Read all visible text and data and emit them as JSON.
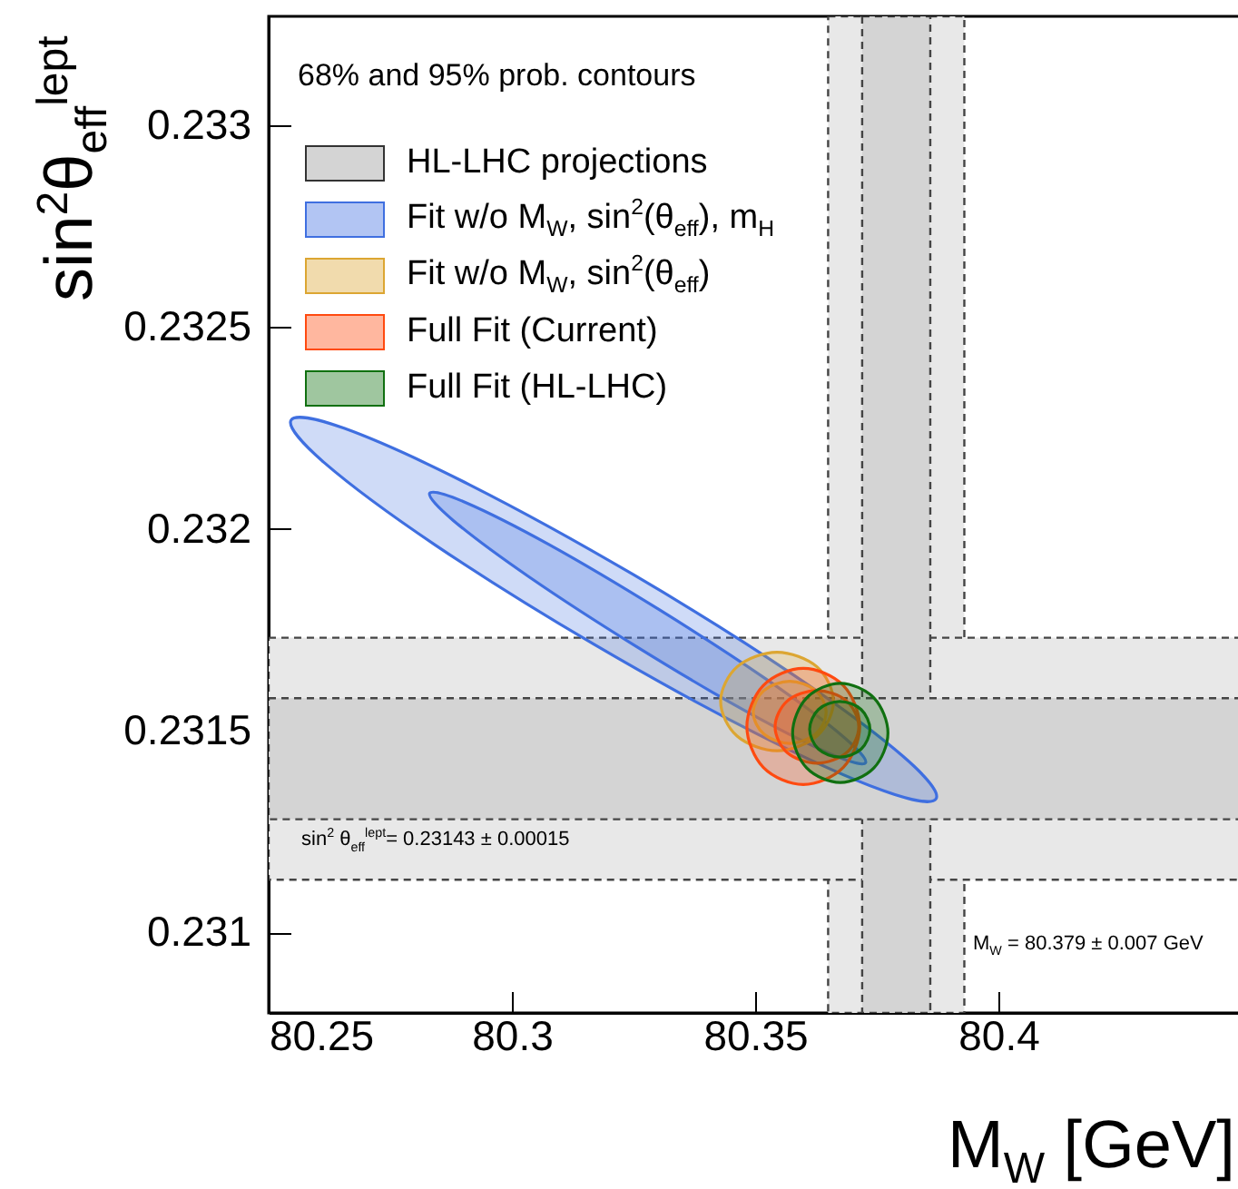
{
  "chart_data": {
    "type": "area",
    "xlabel": "M$_{W}$ [GeV]",
    "ylabel": "sin$^{2}$θ$_{eff}$$^{lept}$",
    "xlim": [
      80.25,
      80.45
    ],
    "xticks": [
      80.25,
      80.3,
      80.35,
      80.4
    ],
    "ylim": [
      0.2308,
      0.23327
    ],
    "yticks": [
      0.231,
      0.2315,
      0.232,
      0.2325,
      0.233
    ],
    "legend": "top left",
    "annotations": [
      "68% and 95% prob. contours",
      "sin$^{2}$ θ$_{eff}$$^{lept}$= 0.23143 ± 0.00015",
      "M$_{W}$ = 80.379 ± 0.007 GeV",
      "HL-LHC projections"
    ],
    "bands": [
      {
        "axis": "x",
        "from": 80.365,
        "to": 80.393,
        "color": "#e8e8e8"
      },
      {
        "axis": "y",
        "from": 0.23113,
        "to": 0.23173,
        "color": "#e8e8e8"
      },
      {
        "axis": "x",
        "from": 80.372,
        "to": 80.386,
        "color": "#d4d4d4"
      },
      {
        "axis": "y",
        "from": 0.23128,
        "to": 0.23158,
        "color": "#d4d4d4"
      }
    ],
    "series": [
      {
        "name": "Fit w/o M$_{W}$, sin$^{2}$(θ$_{eff}$), m$_{H}$",
        "color": "#3f6fe0",
        "x": [
          80.3872,
          80.3804,
          80.3576,
          80.325,
          80.2913,
          80.2655,
          80.2546,
          80.2614,
          80.2842,
          80.3168,
          80.3505,
          80.3763
        ],
        "values": [
          0.231331,
          0.231436,
          0.23164,
          0.231886,
          0.232109,
          0.232249,
          0.232269,
          0.232164,
          0.23196,
          0.231714,
          0.231491,
          0.231351
        ]
      },
      {
        "color": "#3f6fe0",
        "x": [
          80.3727,
          80.3678,
          80.3523,
          80.3302,
          80.3076,
          80.2903,
          80.2831,
          80.288,
          80.3035,
          80.3256,
          80.3482,
          80.3655
        ],
        "values": [
          0.23142,
          0.231488,
          0.231627,
          0.2318,
          0.231961,
          0.232066,
          0.232088,
          0.23202,
          0.231881,
          0.231708,
          0.231547,
          0.231442
        ]
      },
      {
        "name": "Fit w/o M$_{W}$, sin$^{2}$(θ$_{eff}$)",
        "color": "#dca632",
        "x": [
          80.3661,
          80.3627,
          80.3545,
          80.3463,
          80.3429,
          80.3463,
          80.3545,
          80.3627
        ],
        "values": [
          0.231572,
          0.231486,
          0.23145,
          0.231486,
          0.231572,
          0.231658,
          0.231694,
          0.231658
        ]
      },
      {
        "color": "#dca632",
        "x": [
          80.3646,
          80.3624,
          80.3571,
          80.3518,
          80.3496,
          80.3518,
          80.3571,
          80.3624
        ],
        "values": [
          0.231545,
          0.231491,
          0.231468,
          0.231491,
          0.231545,
          0.231599,
          0.231622,
          0.231599
        ]
      },
      {
        "name": "Full Fit (Current)",
        "color": "#ff4a10",
        "x": [
          80.3715,
          80.3681,
          80.3599,
          80.3517,
          80.3483,
          80.3517,
          80.3599,
          80.3681
        ],
        "values": [
          0.23151,
          0.231408,
          0.231366,
          0.231408,
          0.23151,
          0.231612,
          0.231654,
          0.231612
        ]
      },
      {
        "color": "#ff4a10",
        "x": [
          80.3713,
          80.3688,
          80.3627,
          80.3566,
          80.3541,
          80.3566,
          80.3627,
          80.3688
        ],
        "values": [
          0.231509,
          0.231445,
          0.231419,
          0.231445,
          0.231509,
          0.231573,
          0.231599,
          0.231573
        ]
      },
      {
        "name": "Full Fit (HL-LHC)",
        "color": "#107010",
        "x": [
          80.3773,
          80.3744,
          80.3675,
          80.3606,
          80.3577,
          80.3606,
          80.3675,
          80.3744
        ],
        "values": [
          0.231494,
          0.231407,
          0.231371,
          0.231407,
          0.231494,
          0.231581,
          0.231617,
          0.231581
        ]
      },
      {
        "color": "#107010",
        "x": [
          80.3736,
          80.3718,
          80.3674,
          80.363,
          80.3612,
          80.363,
          80.3674,
          80.3718
        ],
        "values": [
          0.231503,
          0.231454,
          0.231434,
          0.231454,
          0.231503,
          0.231552,
          0.231572,
          0.231552
        ]
      }
    ]
  }
}
